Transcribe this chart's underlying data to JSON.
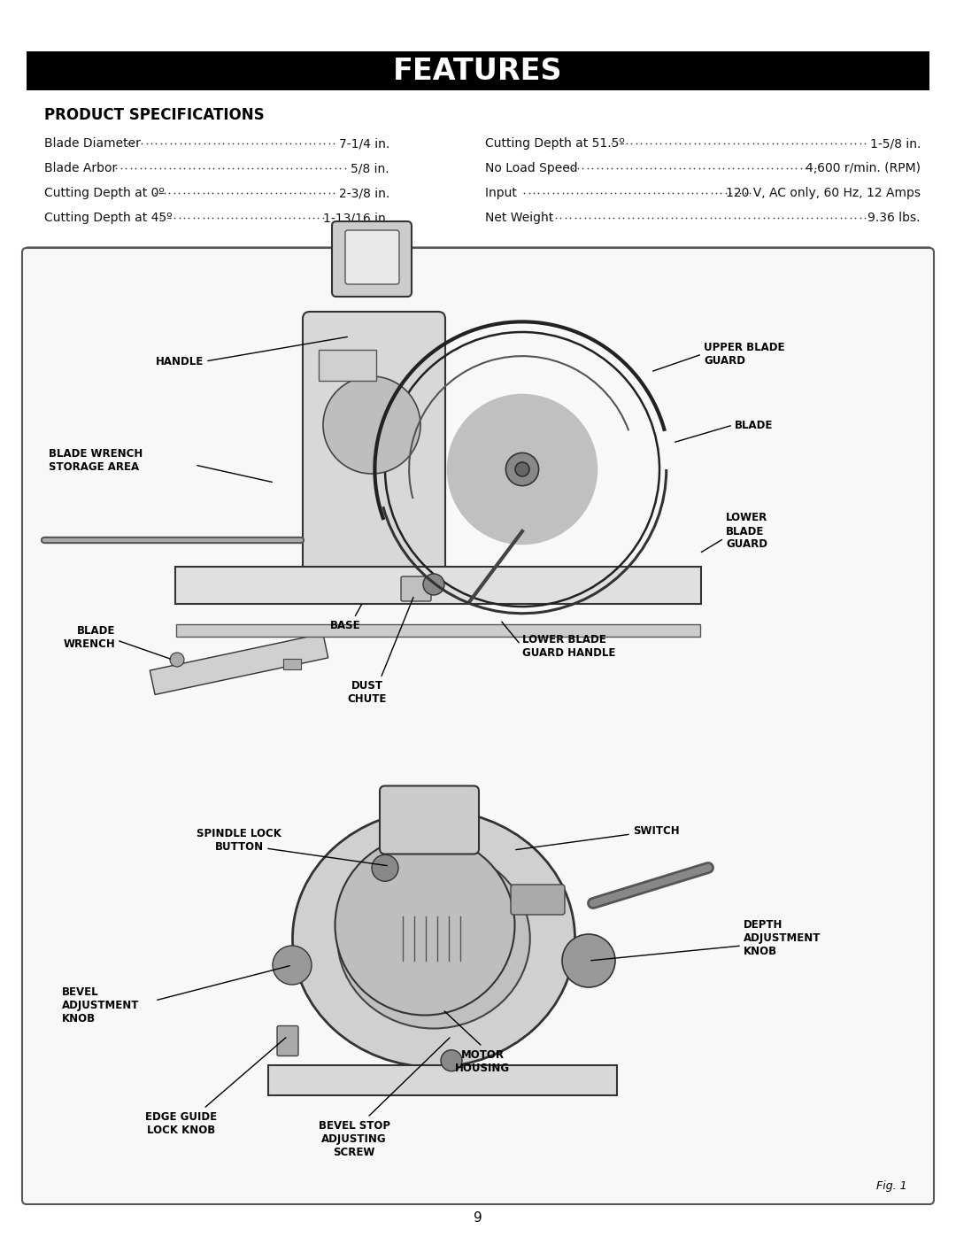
{
  "title": "FEATURES",
  "title_bg": "#000000",
  "title_color": "#ffffff",
  "title_fontsize": 24,
  "section_title": "PRODUCT SPECIFICATIONS",
  "specs_left": [
    [
      "Blade Diameter",
      "7-1/4 in."
    ],
    [
      "Blade Arbor ",
      "5/8 in."
    ],
    [
      "Cutting Depth at 0º",
      "2-3/8 in."
    ],
    [
      "Cutting Depth at 45º",
      "1-13/16 in."
    ]
  ],
  "specs_right": [
    [
      "Cutting Depth at 51.5º",
      "1-5/8 in."
    ],
    [
      "No Load Speed ",
      "4,600 r/min. (RPM)"
    ],
    [
      "Input ",
      "120 V, AC only, 60 Hz, 12 Amps"
    ],
    [
      "Net Weight",
      "9.36 lbs."
    ]
  ],
  "fig1_label": "Fig. 1",
  "page_number": "9",
  "bg_color": "#ffffff",
  "text_color": "#000000",
  "spec_fontsize": 10.0,
  "label_fontsize": 8.5,
  "box_bg": "#f5f5f5",
  "box_edge": "#444444"
}
